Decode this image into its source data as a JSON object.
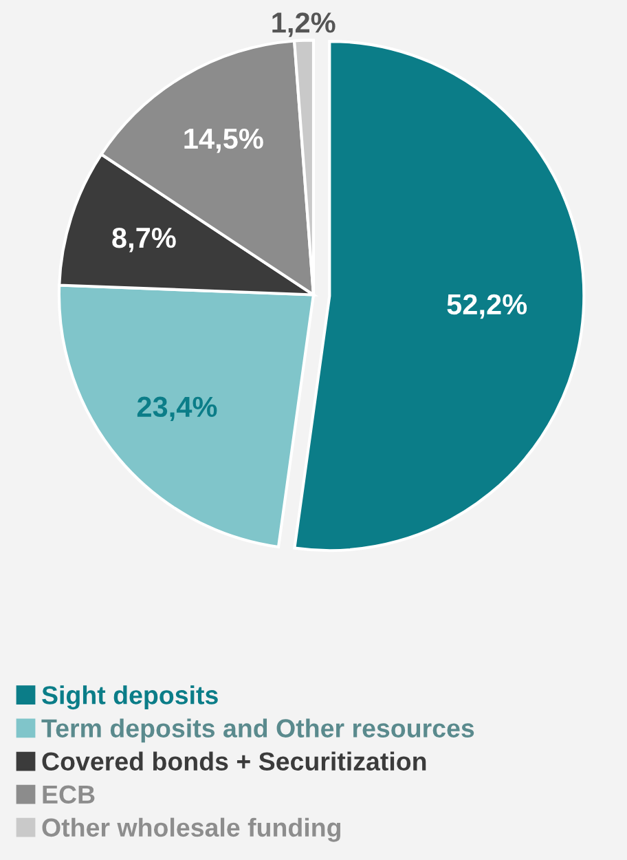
{
  "chart_data": {
    "type": "pie",
    "categories": [
      "Sight deposits",
      "Term deposits and Other resources",
      "Covered bonds + Securitization",
      "ECB",
      "Other wholesale funding"
    ],
    "values": [
      52.2,
      23.4,
      8.7,
      14.5,
      1.2
    ],
    "colors": [
      "#0b7d88",
      "#80c5ca",
      "#3b3b3b",
      "#8c8c8c",
      "#c9c9c9"
    ],
    "value_labels": [
      "52,2%",
      "23,4%",
      "8,7%",
      "14,5%",
      "1,2%"
    ],
    "legend": "bottom"
  }
}
